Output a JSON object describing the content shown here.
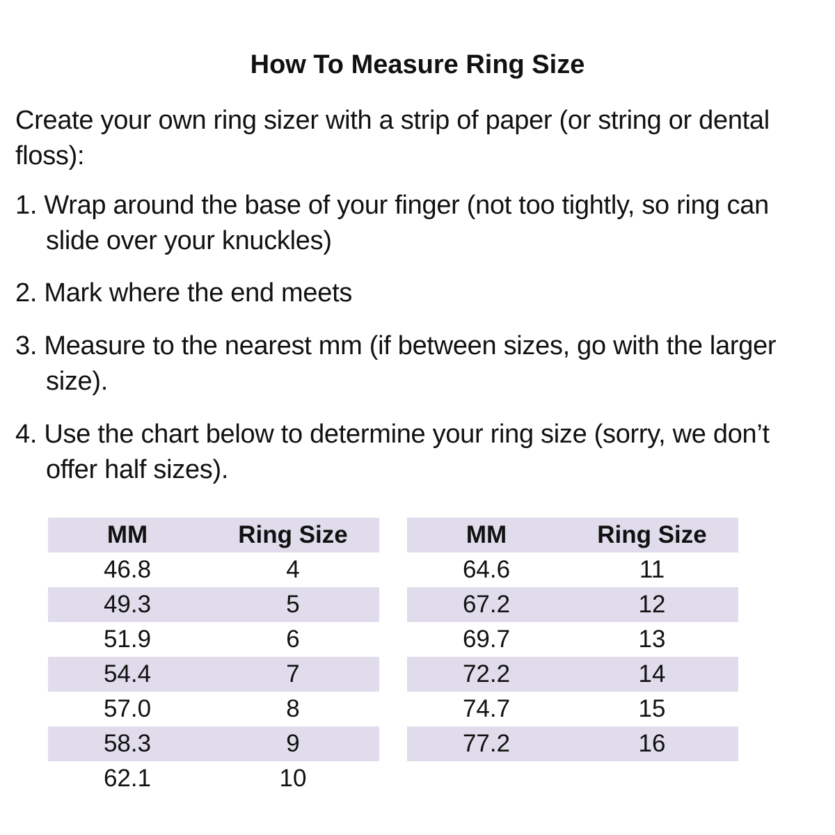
{
  "title": "How To Measure Ring Size",
  "intro": "Create your own ring sizer with a strip of paper (or string or dental floss):",
  "steps": [
    "1. Wrap around the base of your finger (not too tightly, so ring can slide over your knuckles)",
    "2. Mark where the end meets",
    "3. Measure to the nearest mm (if between sizes, go with the larger size).",
    "4. Use the chart below to determine your ring size (sorry, we don’t offer half sizes)."
  ],
  "table_headers": {
    "mm": "MM",
    "size": "Ring Size"
  },
  "table_left": [
    {
      "mm": "46.8",
      "size": "4"
    },
    {
      "mm": "49.3",
      "size": "5"
    },
    {
      "mm": "51.9",
      "size": "6"
    },
    {
      "mm": "54.4",
      "size": "7"
    },
    {
      "mm": "57.0",
      "size": "8"
    },
    {
      "mm": "58.3",
      "size": "9"
    },
    {
      "mm": "62.1",
      "size": "10"
    }
  ],
  "table_right": [
    {
      "mm": "64.6",
      "size": "11"
    },
    {
      "mm": "67.2",
      "size": "12"
    },
    {
      "mm": "69.7",
      "size": "13"
    },
    {
      "mm": "72.2",
      "size": "14"
    },
    {
      "mm": "74.7",
      "size": "15"
    },
    {
      "mm": "77.2",
      "size": "16"
    }
  ],
  "colors": {
    "row_shade": "#e0dcec"
  }
}
